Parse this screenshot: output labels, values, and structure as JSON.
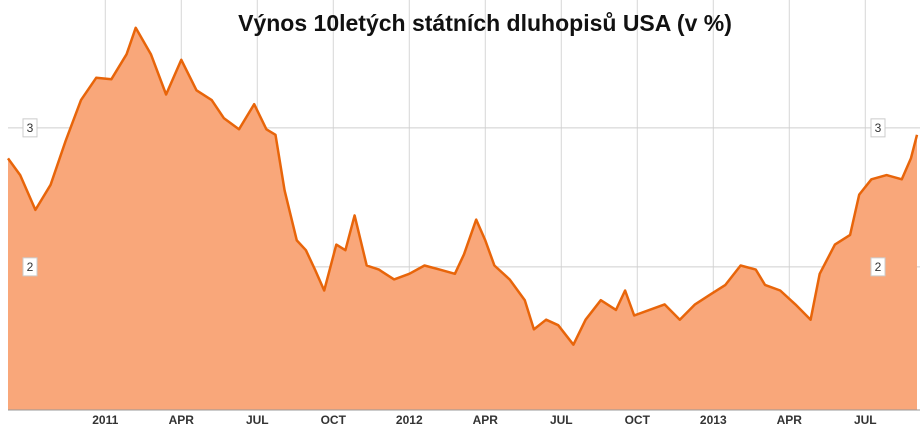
{
  "chart_data": {
    "type": "area",
    "title": "Výnos 10letých státních dluhopisů USA (v %)",
    "x": [
      2010.68,
      2010.72,
      2010.77,
      2010.82,
      2010.87,
      2010.92,
      2010.97,
      2011.02,
      2011.07,
      2011.1,
      2011.15,
      2011.2,
      2011.25,
      2011.3,
      2011.35,
      2011.39,
      2011.44,
      2011.49,
      2011.53,
      2011.56,
      2011.59,
      2011.63,
      2011.66,
      2011.69,
      2011.72,
      2011.76,
      2011.79,
      2011.82,
      2011.86,
      2011.9,
      2011.95,
      2012.0,
      2012.05,
      2012.1,
      2012.15,
      2012.18,
      2012.22,
      2012.25,
      2012.28,
      2012.33,
      2012.38,
      2012.41,
      2012.45,
      2012.49,
      2012.54,
      2012.58,
      2012.63,
      2012.68,
      2012.71,
      2012.74,
      2012.79,
      2012.84,
      2012.89,
      2012.94,
      2012.99,
      2013.04,
      2013.09,
      2013.14,
      2013.17,
      2013.22,
      2013.27,
      2013.32,
      2013.35,
      2013.4,
      2013.45,
      2013.48,
      2013.52,
      2013.57,
      2013.62,
      2013.65,
      2013.67
    ],
    "values": [
      2.78,
      2.66,
      2.41,
      2.59,
      2.91,
      3.2,
      3.36,
      3.35,
      3.53,
      3.72,
      3.53,
      3.24,
      3.49,
      3.27,
      3.2,
      3.07,
      2.99,
      3.17,
      2.99,
      2.95,
      2.55,
      2.19,
      2.12,
      1.98,
      1.83,
      2.16,
      2.12,
      2.37,
      2.01,
      1.98,
      1.91,
      1.95,
      2.01,
      1.98,
      1.95,
      2.09,
      2.34,
      2.19,
      2.01,
      1.91,
      1.76,
      1.55,
      1.62,
      1.58,
      1.44,
      1.62,
      1.76,
      1.69,
      1.83,
      1.65,
      1.69,
      1.73,
      1.62,
      1.73,
      1.8,
      1.87,
      2.01,
      1.98,
      1.87,
      1.83,
      1.73,
      1.62,
      1.95,
      2.16,
      2.23,
      2.52,
      2.63,
      2.66,
      2.63,
      2.78,
      2.95
    ],
    "color": "#e8650a",
    "fill": "#f9a77a",
    "xlim": [
      2010.68,
      2013.68
    ],
    "xticks": [
      2011,
      {
        "value": 2011.25,
        "label": "APR"
      },
      {
        "value": 2011.5,
        "label": "JUL"
      },
      {
        "value": 2011.75,
        "label": "OCT"
      },
      2012,
      {
        "value": 2012.25,
        "label": "APR"
      },
      {
        "value": 2012.5,
        "label": "JUL"
      },
      {
        "value": 2012.75,
        "label": "OCT"
      },
      2013,
      {
        "value": 2013.25,
        "label": "APR"
      },
      {
        "value": 2013.5,
        "label": "JUL"
      }
    ],
    "ylim": [
      0.97,
      3.92
    ],
    "yticks": [
      2,
      3
    ],
    "grid": true
  }
}
